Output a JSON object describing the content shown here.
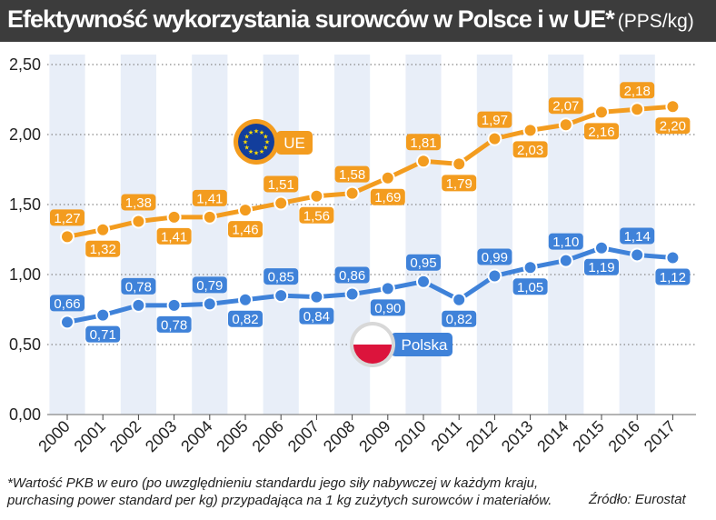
{
  "title": "Efektywność wykorzystania surowców w Polsce i w UE*",
  "title_unit": "(PPS/kg)",
  "footnote": "*Wartość PKB w euro (po uwzględnieniu standardu jego siły nabywczej w każdym kraju, purchasing power standard per kg) przypadająca na 1 kg zużytych surowców i materiałów.",
  "source": "Źródło: Eurostat",
  "colors": {
    "ue": "#f39c1f",
    "polska": "#3f82d9",
    "band": "#e8eef8",
    "grid": "#888888",
    "title_bg": "#3c3c3c"
  },
  "chart_data": {
    "type": "line",
    "categories": [
      "2000",
      "2001",
      "2002",
      "2003",
      "2004",
      "2005",
      "2006",
      "2007",
      "2008",
      "2009",
      "2010",
      "2011",
      "2012",
      "2013",
      "2014",
      "2015",
      "2016",
      "2017"
    ],
    "y_ticks": [
      "0,00",
      "0,50",
      "1,00",
      "1,50",
      "2,00",
      "2,50"
    ],
    "ylim": [
      0,
      2.5
    ],
    "grid": "horizontal dotted",
    "series": [
      {
        "name": "UE",
        "legend_icon": "eu-flag-icon",
        "values": [
          1.27,
          1.32,
          1.38,
          1.41,
          1.41,
          1.46,
          1.51,
          1.56,
          1.58,
          1.69,
          1.81,
          1.79,
          1.97,
          2.03,
          2.07,
          2.16,
          2.18,
          2.2
        ],
        "labels": [
          "1,27",
          "1,32",
          "1,38",
          "1,41",
          "1,41",
          "1,46",
          "1,51",
          "1,56",
          "1,58",
          "1,69",
          "1,81",
          "1,79",
          "1,97",
          "2,03",
          "2,07",
          "2,16",
          "2,18",
          "2,20"
        ]
      },
      {
        "name": "Polska",
        "legend_icon": "poland-flag-icon",
        "values": [
          0.66,
          0.71,
          0.78,
          0.78,
          0.79,
          0.82,
          0.85,
          0.84,
          0.86,
          0.9,
          0.95,
          0.82,
          0.99,
          1.05,
          1.1,
          1.19,
          1.14,
          1.12
        ],
        "labels": [
          "0,66",
          "0,71",
          "0,78",
          "0,78",
          "0,79",
          "0,82",
          "0,85",
          "0,84",
          "0,86",
          "0,90",
          "0,95",
          "0,82",
          "0,99",
          "1,05",
          "1,10",
          "1,19",
          "1,14",
          "1,12"
        ]
      }
    ]
  }
}
